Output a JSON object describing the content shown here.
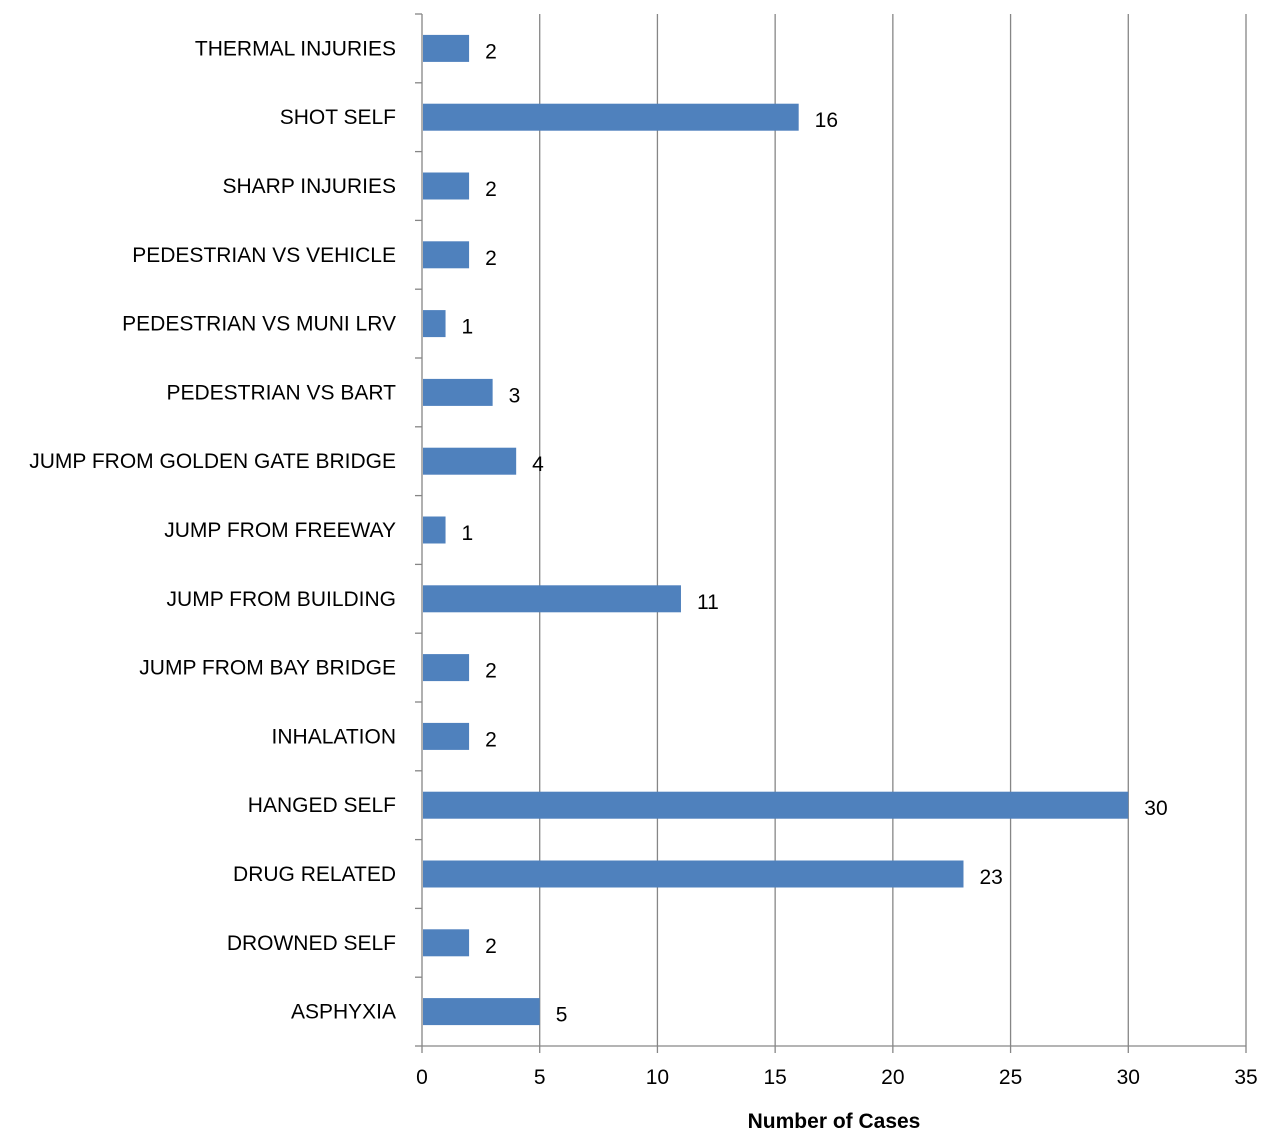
{
  "chart_data": {
    "type": "bar",
    "orientation": "horizontal",
    "categories": [
      "ASPHYXIA",
      "DROWNED SELF",
      "DRUG RELATED",
      "HANGED SELF",
      "INHALATION",
      "JUMP FROM BAY BRIDGE",
      "JUMP FROM BUILDING",
      "JUMP FROM FREEWAY",
      "JUMP FROM GOLDEN GATE BRIDGE",
      "PEDESTRIAN VS BART",
      "PEDESTRIAN VS MUNI LRV",
      "PEDESTRIAN VS VEHICLE",
      "SHARP INJURIES",
      "SHOT SELF",
      "THERMAL INJURIES"
    ],
    "values": [
      5,
      2,
      23,
      30,
      2,
      2,
      11,
      1,
      4,
      3,
      1,
      2,
      2,
      16,
      2
    ],
    "title": "",
    "xlabel": "Number of Cases",
    "ylabel": "",
    "xlim": [
      0,
      35
    ],
    "xticks": [
      0,
      5,
      10,
      15,
      20,
      25,
      30,
      35
    ],
    "grid": "vertical",
    "legend": "none",
    "data_labels": true,
    "bar_color": "#4F81BD"
  }
}
